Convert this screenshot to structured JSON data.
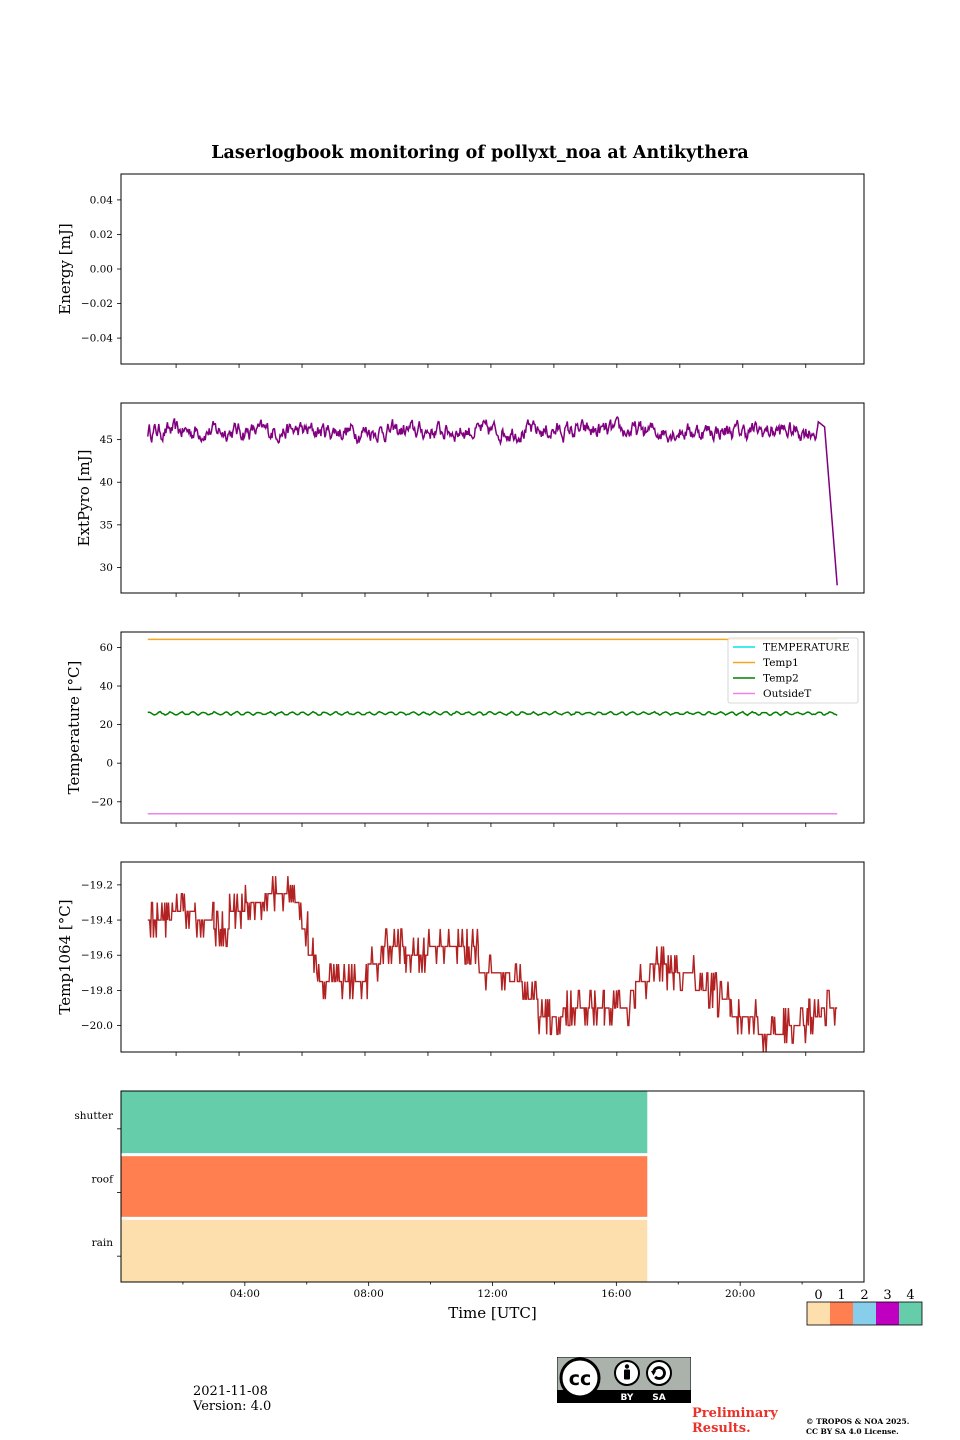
{
  "title": "Laserlogbook monitoring of pollyxt_noa at Antikythera",
  "footer": {
    "date": "2021-11-08",
    "version": "Version: 4.0",
    "preliminary_line1": "Preliminary",
    "preliminary_line2": "Results.",
    "copyright_line1": "© TROPOS & NOA 2025.",
    "copyright_line2": "CC BY SA 4.0 License.",
    "cc_logo": {
      "by": "BY",
      "sa": "SA"
    }
  },
  "colors": {
    "extpyro": "#800080",
    "temp1": "#f5a623",
    "temp2": "#008000",
    "outsideT": "#ee82ee",
    "temperature": "#00e5e5",
    "temp1064": "#b22222",
    "status_0": "#fddfad",
    "status_1": "#ff7f50",
    "status_2": "#87ceeb",
    "status_3": "#c000c0",
    "status_4": "#66cdaa"
  },
  "chart_data": [
    {
      "id": "energy",
      "type": "line",
      "ylabel": "Energy [mJ]",
      "ylim": [
        -0.055,
        0.055
      ],
      "yticks": [
        0.04,
        0.02,
        0.0,
        -0.02,
        -0.04
      ],
      "ytick_labels": [
        "0.04",
        "0.02",
        "0.00",
        "−0.02",
        "−0.04"
      ],
      "series": []
    },
    {
      "id": "extpyro",
      "type": "line",
      "ylabel": "ExtPyro [mJ]",
      "ylim": [
        27,
        49.3
      ],
      "yticks": [
        45,
        40,
        35,
        30
      ],
      "ytick_labels": [
        "45",
        "40",
        "35",
        "30"
      ],
      "xlim_hours": [
        1.1,
        23.5
      ],
      "base": 46.0,
      "noise": 1.1,
      "end_x": 22.4,
      "final_points": [
        [
          22.6,
          46.5
        ],
        [
          23.0,
          27.9
        ]
      ]
    },
    {
      "id": "temperature",
      "type": "line",
      "ylabel": "Temperature [°C]",
      "ylim": [
        -31,
        68
      ],
      "yticks": [
        60,
        40,
        20,
        0,
        -20
      ],
      "ytick_labels": [
        "60",
        "40",
        "20",
        "0",
        "−20"
      ],
      "legend_placement": "upper right",
      "series": [
        {
          "name": "TEMPERATURE",
          "x": [],
          "y": []
        },
        {
          "name": "Temp1",
          "x": [
            1.1,
            23.0
          ],
          "y": [
            64.2,
            64.2
          ]
        },
        {
          "name": "Temp2",
          "base": 25.8,
          "amp": 0.7,
          "x_range": [
            1.1,
            23.0
          ]
        },
        {
          "name": "OutsideT",
          "x": [
            1.1,
            23.0
          ],
          "y": [
            -26.2,
            -26.2
          ]
        }
      ]
    },
    {
      "id": "temp1064",
      "type": "line",
      "ylabel": "Temp1064 [°C]",
      "ylim": [
        -20.15,
        -19.07
      ],
      "yticks": [
        -19.2,
        -19.4,
        -19.6,
        -19.8,
        -20.0
      ],
      "ytick_labels": [
        "−19.2",
        "−19.4",
        "−19.6",
        "−19.8",
        "−20.0"
      ],
      "levels": [
        [
          1.1,
          -19.4
        ],
        [
          1.9,
          -19.35
        ],
        [
          2.6,
          -19.4
        ],
        [
          3.2,
          -19.45
        ],
        [
          3.7,
          -19.35
        ],
        [
          4.2,
          -19.3
        ],
        [
          4.8,
          -19.25
        ],
        [
          5.6,
          -19.3
        ],
        [
          6.0,
          -19.45
        ],
        [
          6.2,
          -19.6
        ],
        [
          6.5,
          -19.75
        ],
        [
          7.8,
          -19.75
        ],
        [
          8.1,
          -19.65
        ],
        [
          8.6,
          -19.55
        ],
        [
          9.3,
          -19.6
        ],
        [
          10.0,
          -19.55
        ],
        [
          11.0,
          -19.55
        ],
        [
          11.6,
          -19.7
        ],
        [
          12.6,
          -19.75
        ],
        [
          13.1,
          -19.85
        ],
        [
          13.5,
          -19.95
        ],
        [
          14.3,
          -19.9
        ],
        [
          15.0,
          -19.9
        ],
        [
          15.6,
          -19.9
        ],
        [
          16.2,
          -19.9
        ],
        [
          16.6,
          -19.75
        ],
        [
          17.0,
          -19.65
        ],
        [
          17.6,
          -19.7
        ],
        [
          18.5,
          -19.8
        ],
        [
          19.2,
          -19.85
        ],
        [
          19.6,
          -19.95
        ],
        [
          20.5,
          -20.05
        ],
        [
          21.3,
          -20.0
        ],
        [
          22.1,
          -19.95
        ],
        [
          22.5,
          -19.9
        ],
        [
          23.0,
          -19.9
        ]
      ]
    },
    {
      "id": "status",
      "type": "heatmap",
      "xlabel": "Time [UTC]",
      "xlim_hours": [
        0,
        24
      ],
      "xticks": [
        4,
        8,
        12,
        16,
        20
      ],
      "xtick_labels": [
        "04:00",
        "08:00",
        "12:00",
        "16:00",
        "20:00"
      ],
      "rows": [
        {
          "name": "shutter",
          "value": 4,
          "start": 0,
          "end": 17.0
        },
        {
          "name": "roof",
          "value": 1,
          "start": 0,
          "end": 17.0
        },
        {
          "name": "rain",
          "value": 0,
          "start": 0,
          "end": 17.0
        }
      ],
      "colorbar_labels": [
        "0",
        "1",
        "2",
        "3",
        "4"
      ]
    }
  ]
}
